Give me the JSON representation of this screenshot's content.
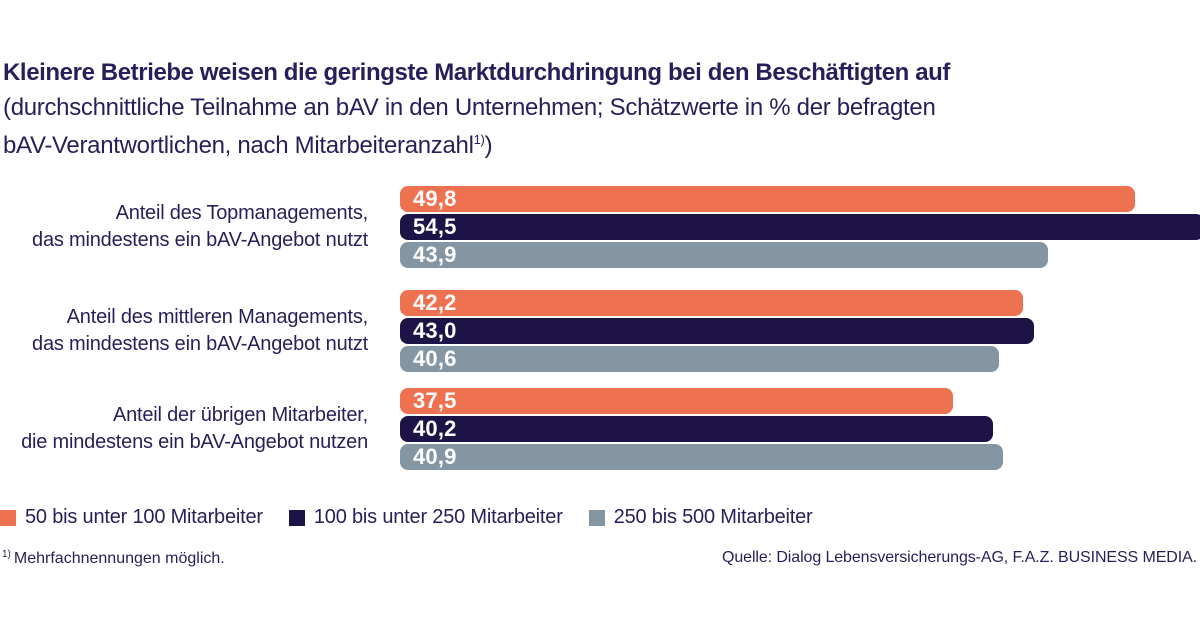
{
  "header": {
    "title": "Kleinere Betriebe weisen die geringste Marktdurchdringung bei den Beschäftigten auf",
    "subtitle_line1": "(durchschnittliche Teilnahme an bAV in den Unternehmen; Schätzwerte in % der befragten",
    "subtitle_line2": "bAV-Verantwortlichen, nach Mitarbeiteranzahl",
    "subtitle_sup": "1)",
    "subtitle_end": ")"
  },
  "chart_data": {
    "type": "bar",
    "orientation": "horizontal",
    "unit": "%",
    "title": "Kleinere Betriebe weisen die geringste Marktdurchdringung bei den Beschäftigten auf",
    "subtitle": "(durchschnittliche Teilnahme an bAV in den Unternehmen; Schätzwerte in % der befragten bAV-Verantwortlichen, nach Mitarbeiteranzahl1))",
    "xlim": [
      0,
      54.5
    ],
    "grid": false,
    "legend_position": "bottom",
    "categories": [
      [
        "Anteil des Topmanagements,",
        "das mindestens ein bAV-Angebot nutzt"
      ],
      [
        "Anteil des mittleren Managements,",
        "das mindestens ein bAV-Angebot nutzt"
      ],
      [
        "Anteil der übrigen Mitarbeiter,",
        "die mindestens ein bAV-Angebot nutzen"
      ]
    ],
    "series": [
      {
        "name": "50 bis unter 100 Mitarbeiter",
        "color": "#EE7150",
        "values": [
          49.8,
          42.2,
          37.5
        ],
        "labels": [
          "49,8",
          "42,2",
          "37,5"
        ]
      },
      {
        "name": "100 bis unter 250 Mitarbeiter",
        "color": "#1E1346",
        "values": [
          54.5,
          43.0,
          40.2
        ],
        "labels": [
          "54,5",
          "43,0",
          "40,2"
        ]
      },
      {
        "name": "250 bis 500 Mitarbeiter",
        "color": "#8495A4",
        "values": [
          43.9,
          40.6,
          40.9
        ],
        "labels": [
          "43,9",
          "40,6",
          "40,9"
        ]
      }
    ]
  },
  "footer": {
    "footnote_sup": "1)",
    "footnote_text": "Mehrfachnennungen möglich.",
    "source": "Quelle: Dialog Lebensversicherungs-AG, F.A.Z. BUSINESS MEDIA."
  },
  "colors": {
    "text": "#281E5A",
    "orange": "#EE7150",
    "navy": "#1E1346",
    "gray": "#8495A4",
    "background": "#FFFFFF"
  }
}
